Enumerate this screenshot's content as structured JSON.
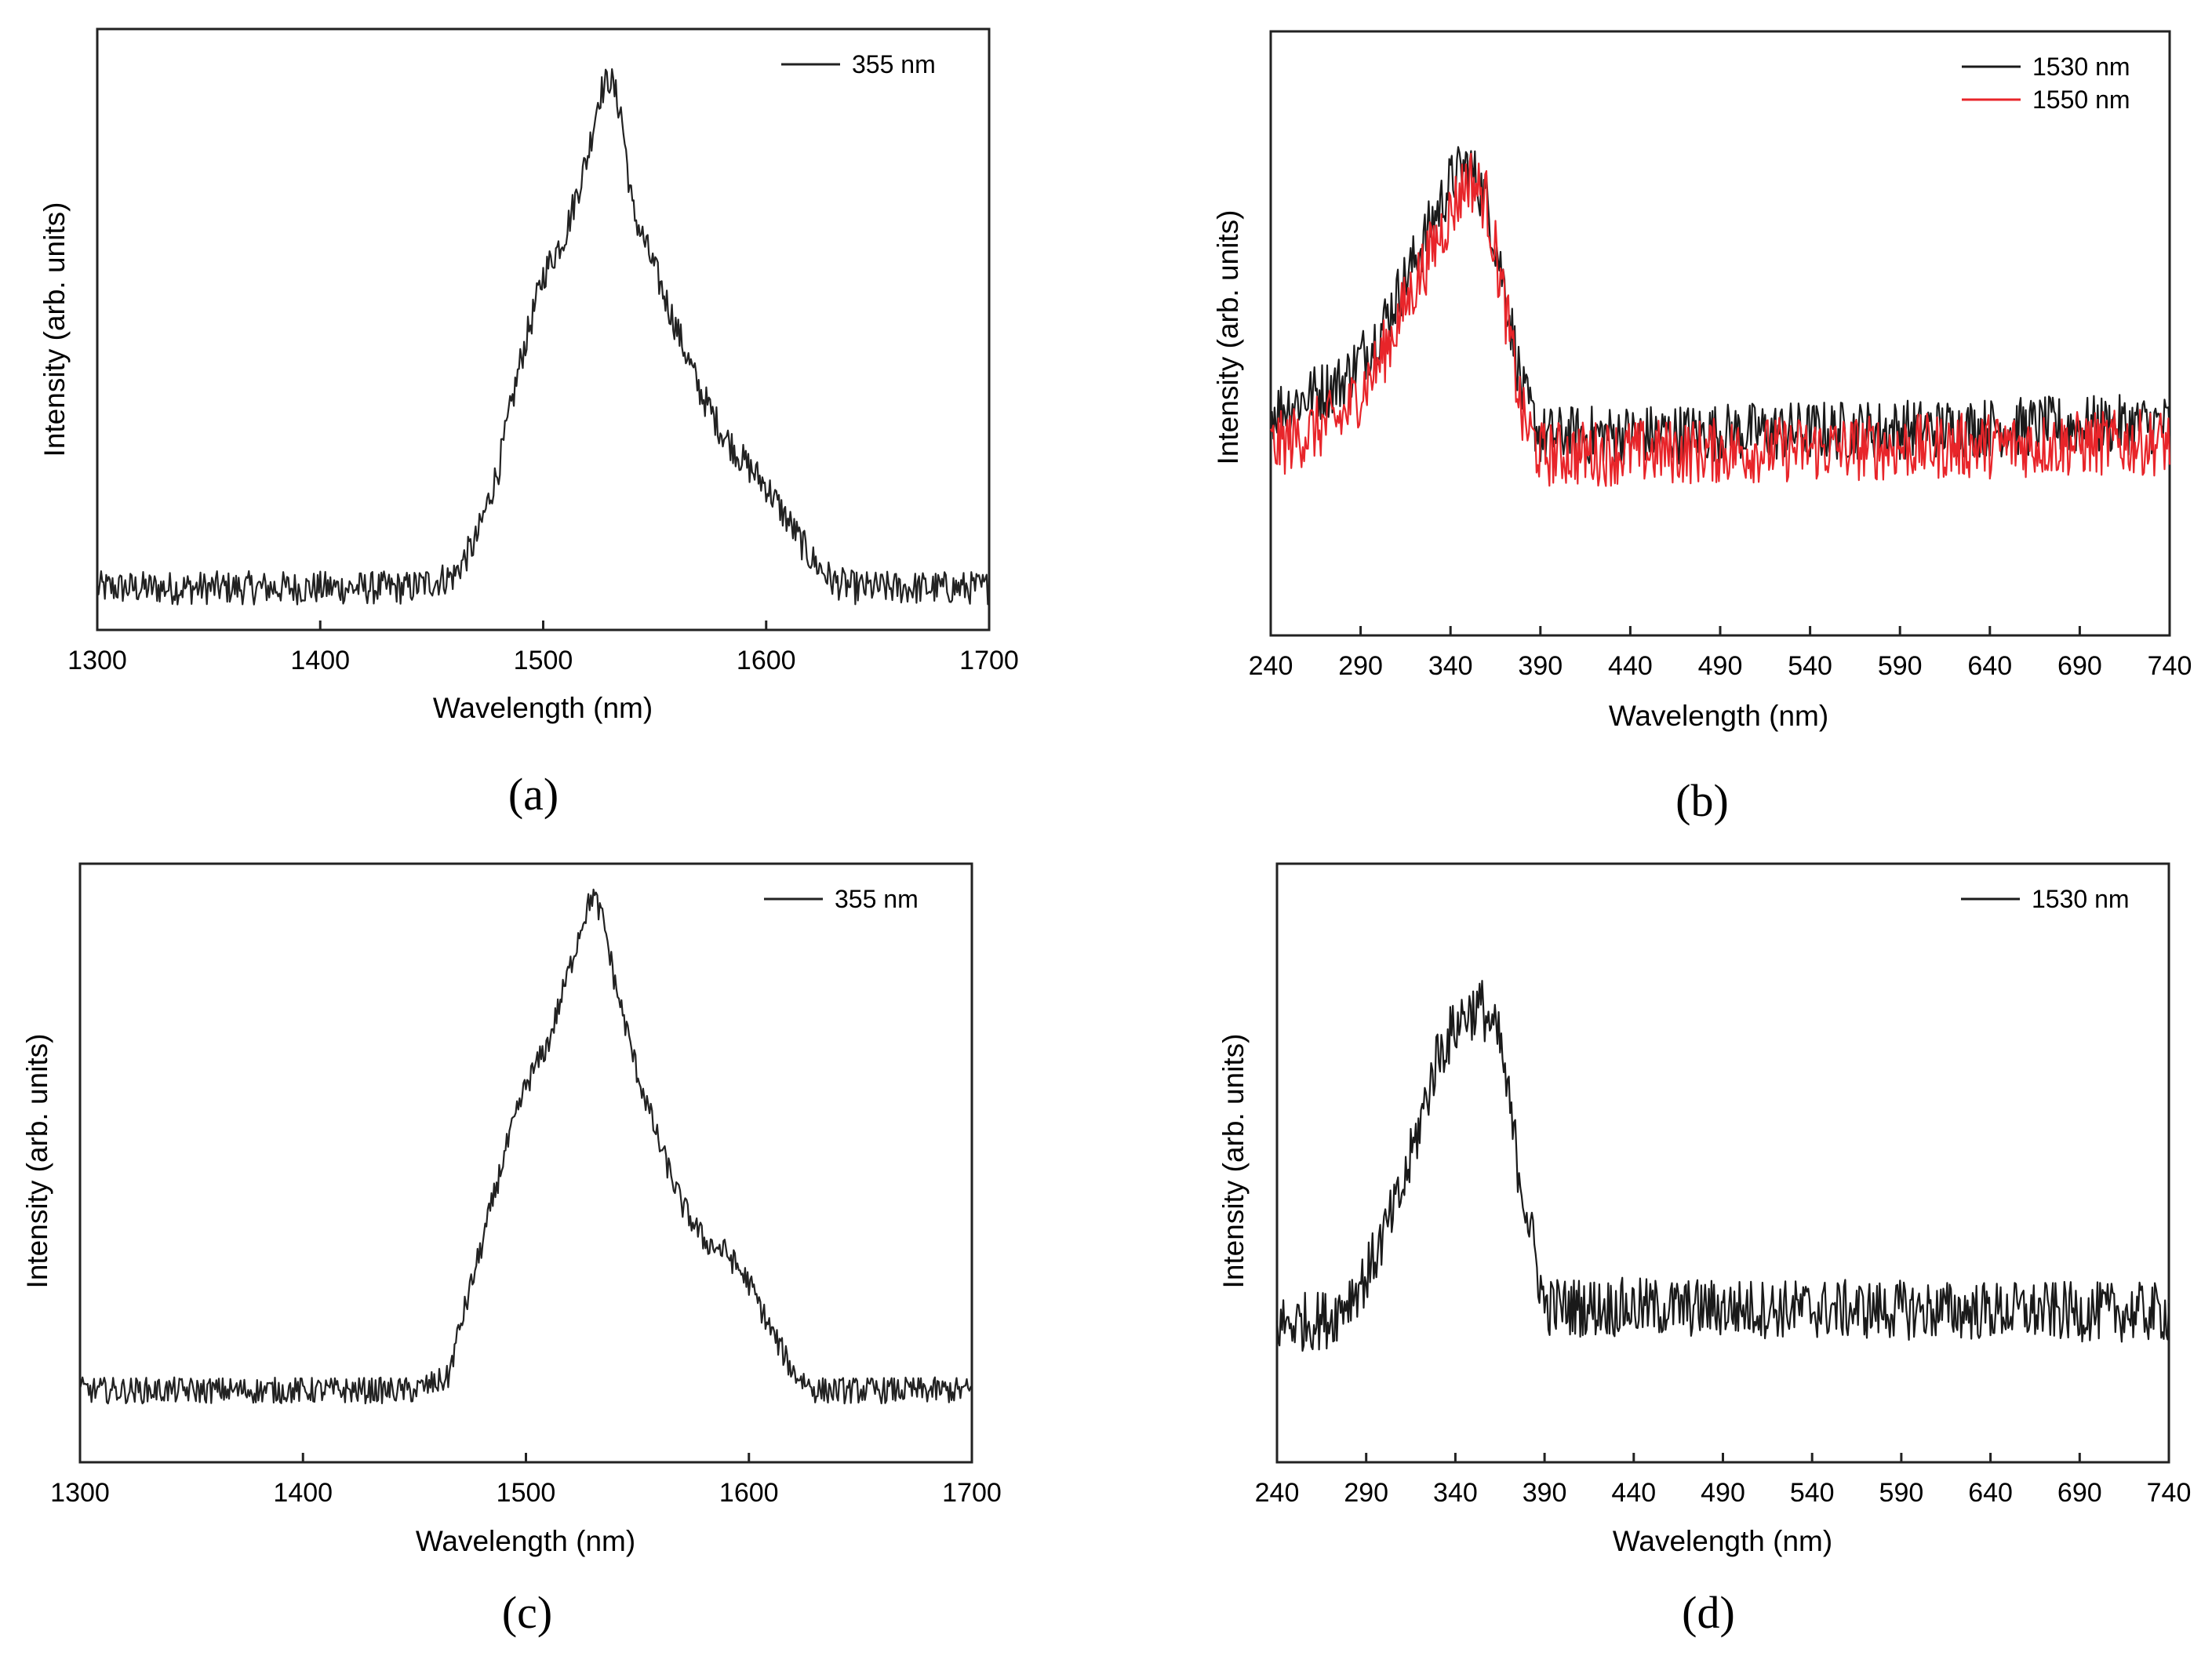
{
  "chart_data": [
    {
      "panel": "(a)",
      "type": "line",
      "xlabel": "Wavelength (nm)",
      "ylabel": "Intensity (arb. units)",
      "xlim": [
        1300,
        1700
      ],
      "xticks": [
        1300,
        1400,
        1500,
        1600,
        1700
      ],
      "ylim": [
        0,
        1
      ],
      "yticks_shown": false,
      "legend_position": "top-right",
      "series": [
        {
          "name": "355 nm",
          "color": "#222222",
          "noise": 0.028,
          "x": [
            1300,
            1440,
            1460,
            1470,
            1480,
            1490,
            1500,
            1510,
            1520,
            1525,
            1530,
            1535,
            1540,
            1550,
            1560,
            1570,
            1580,
            1590,
            1600,
            1610,
            1620,
            1630,
            1640,
            1700
          ],
          "y": [
            0.07,
            0.07,
            0.09,
            0.15,
            0.27,
            0.45,
            0.59,
            0.66,
            0.79,
            0.89,
            0.92,
            0.86,
            0.7,
            0.6,
            0.5,
            0.4,
            0.33,
            0.28,
            0.24,
            0.18,
            0.12,
            0.08,
            0.07,
            0.07
          ]
        }
      ]
    },
    {
      "panel": "(b)",
      "type": "line",
      "xlabel": "Wavelength (nm)",
      "ylabel": "Intensity (arb. units)",
      "xlim": [
        240,
        740
      ],
      "xticks": [
        240,
        290,
        340,
        390,
        440,
        490,
        540,
        590,
        640,
        690,
        740
      ],
      "ylim": [
        0,
        1
      ],
      "yticks_shown": false,
      "legend_position": "top-right",
      "series": [
        {
          "name": "1530 nm",
          "color": "#1a1a1a",
          "noise": 0.05,
          "x": [
            240,
            280,
            300,
            320,
            340,
            350,
            360,
            370,
            380,
            390,
            740
          ],
          "y": [
            0.37,
            0.42,
            0.5,
            0.62,
            0.75,
            0.78,
            0.72,
            0.58,
            0.4,
            0.33,
            0.35
          ]
        },
        {
          "name": "1550 nm",
          "color": "#e8252a",
          "noise": 0.055,
          "x": [
            240,
            280,
            300,
            320,
            340,
            350,
            360,
            370,
            380,
            390,
            740
          ],
          "y": [
            0.31,
            0.36,
            0.45,
            0.58,
            0.7,
            0.76,
            0.72,
            0.55,
            0.36,
            0.3,
            0.32
          ]
        }
      ]
    },
    {
      "panel": "(c)",
      "type": "line",
      "xlabel": "Wavelength (nm)",
      "ylabel": "Intensity (arb. units)",
      "xlim": [
        1300,
        1700
      ],
      "xticks": [
        1300,
        1400,
        1500,
        1600,
        1700
      ],
      "ylim": [
        0,
        1
      ],
      "yticks_shown": false,
      "legend_position": "top-right",
      "series": [
        {
          "name": "355 nm",
          "color": "#222222",
          "noise": 0.022,
          "x": [
            1300,
            1450,
            1465,
            1470,
            1480,
            1490,
            1500,
            1510,
            1520,
            1525,
            1530,
            1535,
            1540,
            1550,
            1560,
            1570,
            1580,
            1590,
            1600,
            1610,
            1620,
            1630,
            1700
          ],
          "y": [
            0.12,
            0.12,
            0.14,
            0.22,
            0.36,
            0.51,
            0.63,
            0.7,
            0.83,
            0.9,
            0.95,
            0.9,
            0.8,
            0.65,
            0.53,
            0.43,
            0.37,
            0.35,
            0.3,
            0.22,
            0.15,
            0.12,
            0.12
          ]
        }
      ]
    },
    {
      "panel": "(d)",
      "type": "line",
      "xlabel": "Wavelength (nm)",
      "ylabel": "Intensity (arb. units)",
      "xlim": [
        240,
        740
      ],
      "xticks": [
        240,
        290,
        340,
        390,
        440,
        490,
        540,
        590,
        640,
        690,
        740
      ],
      "ylim": [
        0,
        1
      ],
      "yticks_shown": false,
      "legend_position": "top-right",
      "series": [
        {
          "name": "1530 nm",
          "color": "#1a1a1a",
          "noise": 0.05,
          "x": [
            240,
            270,
            290,
            310,
            330,
            345,
            355,
            365,
            375,
            390,
            740
          ],
          "y": [
            0.23,
            0.24,
            0.31,
            0.45,
            0.68,
            0.75,
            0.76,
            0.7,
            0.5,
            0.26,
            0.25
          ]
        }
      ]
    }
  ]
}
